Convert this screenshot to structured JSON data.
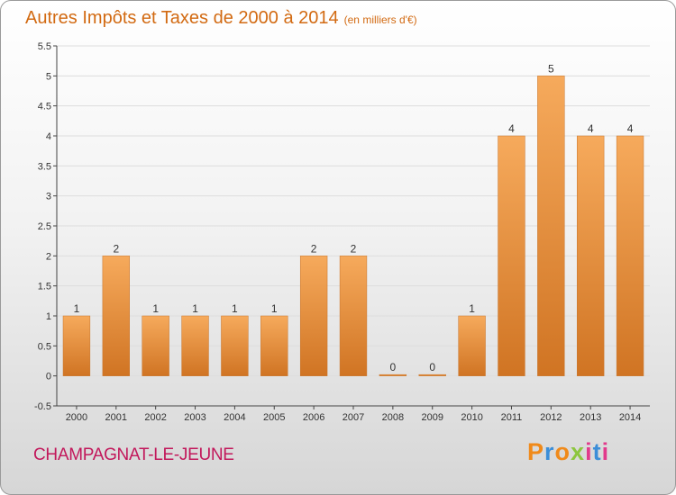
{
  "title": "Autres Impôts et Taxes de 2000 à 2014",
  "unit": "(en milliers d'€)",
  "location": "CHAMPAGNAT-LE-JEUNE",
  "brand": "Proxiti",
  "colors": {
    "title": "#d26a12",
    "location": "#c2185b",
    "bar_light": "#f6aa5c",
    "bar_dark": "#d07423",
    "axis": "#444444",
    "grid": "#dddddd",
    "brand_letters": [
      "#f08a1a",
      "#3c8ed8",
      "#f08a1a",
      "#8dc63f",
      "#e23a8c",
      "#3c8ed8",
      "#e23a8c"
    ]
  },
  "chart_data": {
    "type": "bar",
    "title": "Autres Impôts et Taxes de 2000 à 2014",
    "categories": [
      "2000",
      "2001",
      "2002",
      "2003",
      "2004",
      "2005",
      "2006",
      "2007",
      "2008",
      "2009",
      "2010",
      "2011",
      "2012",
      "2013",
      "2014"
    ],
    "values": [
      1,
      2,
      1,
      1,
      1,
      1,
      2,
      2,
      0,
      0,
      1,
      4,
      5,
      4,
      4
    ],
    "labels": [
      "1",
      "2",
      "1",
      "1",
      "1",
      "1",
      "2",
      "2",
      "0",
      "0",
      "1",
      "4",
      "5",
      "4",
      "4"
    ],
    "yticks": [
      "-0.5",
      "0",
      "0.5",
      "1",
      "1.5",
      "2",
      "2.5",
      "3",
      "3.5",
      "4",
      "4.5",
      "5",
      "5.5"
    ],
    "ylim": [
      -0.5,
      5.5
    ],
    "xlabel": "",
    "ylabel": "",
    "grid": true
  }
}
